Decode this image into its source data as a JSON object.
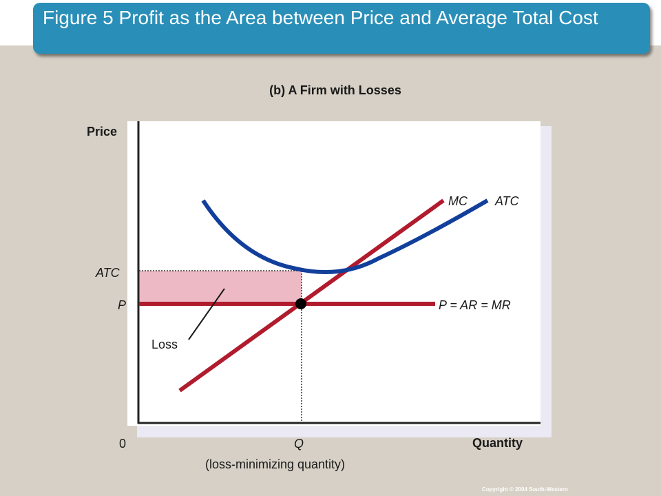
{
  "slide": {
    "title": "Figure 5 Profit as the Area between Price and Average Total Cost",
    "subtitle": "(b) A Firm with Losses",
    "copyright": "Copyright © 2004  South-Western"
  },
  "axes": {
    "y_label": "Price",
    "x_label": "Quantity",
    "origin": "0"
  },
  "curves": {
    "mc": "MC",
    "atc": "ATC",
    "demand": "P = AR = MR"
  },
  "markers": {
    "atc_level": "ATC",
    "price_level": "P",
    "quantity": "Q",
    "quantity_note": "(loss-minimizing quantity)",
    "loss_area": "Loss"
  },
  "colors": {
    "mc_line": "#b01c2e",
    "atc_curve": "#123f9b",
    "price_line": "#b01c2e",
    "loss_fill": "#ecb9c4",
    "title_bar": "#2a8fb8",
    "background": "#d6d0c6"
  }
}
